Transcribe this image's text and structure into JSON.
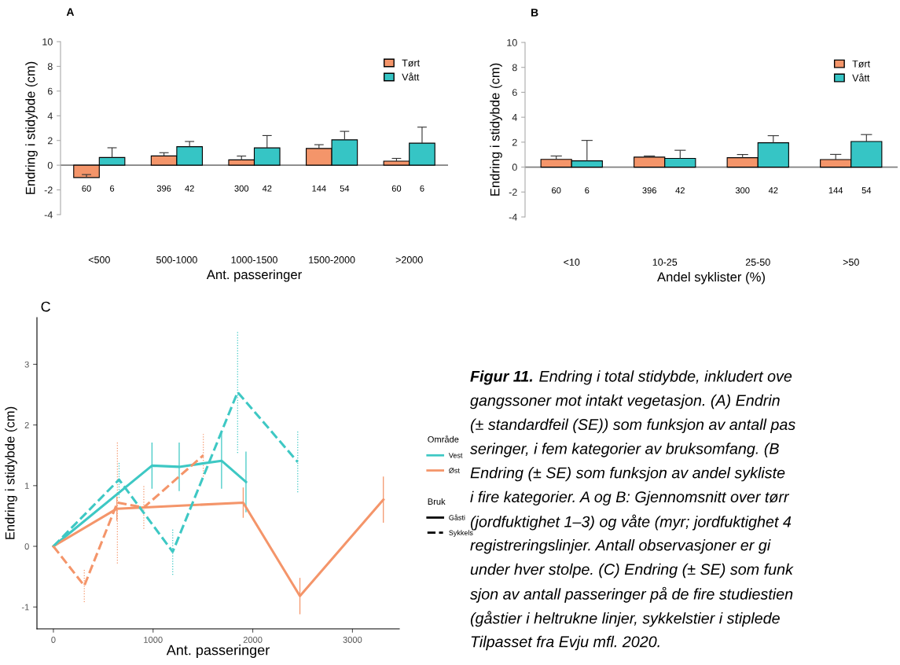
{
  "chart_data": [
    {
      "type": "bar",
      "title": "A",
      "ylabel": "Endring i stidybde (cm)",
      "xlabel": "Ant. passeringer",
      "categories": [
        "<500",
        "500-1000",
        "1000-1500",
        "1500-2000",
        ">2000"
      ],
      "series": [
        {
          "name": "Tørt",
          "color": "#f4956a",
          "values": [
            -1.0,
            0.75,
            0.43,
            1.35,
            0.33
          ],
          "errors": [
            [
              -1.0,
              -0.76
            ],
            [
              0.75,
              1.01
            ],
            [
              0.43,
              0.74
            ],
            [
              1.35,
              1.66
            ],
            [
              0.33,
              0.55
            ]
          ]
        },
        {
          "name": "Vått",
          "color": "#36c5c5",
          "values": [
            0.62,
            1.5,
            1.4,
            2.05,
            1.78
          ],
          "errors": [
            [
              0.62,
              1.41
            ],
            [
              1.5,
              1.92
            ],
            [
              1.4,
              2.4
            ],
            [
              2.05,
              2.74
            ],
            [
              1.78,
              3.08
            ]
          ]
        }
      ],
      "ylim": [
        -4,
        10
      ],
      "yticks": [
        -4,
        -2,
        0,
        2,
        4,
        6,
        8,
        10
      ],
      "legend": "top right",
      "ref_lines": [
        {
          "axis": "y",
          "value": 0,
          "color": "#808080"
        }
      ],
      "annotations": [
        "60",
        "6",
        "396",
        "42",
        "300",
        "42",
        "144",
        "54",
        "60",
        "6"
      ]
    },
    {
      "type": "bar",
      "title": "B",
      "ylabel": "Endring i stidybde (cm)",
      "xlabel": "Andel syklister (%)",
      "categories": [
        "<10",
        "10-25",
        "25-50",
        ">50"
      ],
      "series": [
        {
          "name": "Tørt",
          "color": "#f4956a",
          "values": [
            0.62,
            0.8,
            0.75,
            0.6
          ],
          "errors": [
            [
              0.62,
              0.89
            ],
            [
              0.8,
              0.89
            ],
            [
              0.75,
              1.01
            ],
            [
              0.6,
              1.02
            ]
          ]
        },
        {
          "name": "Vått",
          "color": "#36c5c5",
          "values": [
            0.5,
            0.7,
            1.95,
            2.05
          ],
          "errors": [
            [
              0.5,
              2.14
            ],
            [
              0.7,
              1.35
            ],
            [
              1.95,
              2.52
            ],
            [
              2.05,
              2.61
            ]
          ]
        }
      ],
      "ylim": [
        -4,
        10
      ],
      "yticks": [
        -4,
        -2,
        0,
        2,
        4,
        6,
        8,
        10
      ],
      "legend": "top right",
      "ref_lines": [
        {
          "axis": "y",
          "value": 0,
          "color": "#808080"
        }
      ],
      "annotations": [
        "60",
        "6",
        "396",
        "42",
        "300",
        "42",
        "144",
        "54"
      ]
    },
    {
      "type": "line",
      "title": "C",
      "ylabel": "Endring i stidybde (cm)",
      "xlabel": "Ant. passeringer",
      "legend_title": "Område",
      "series": [
        {
          "name": "Vest",
          "color": "#3ec8c4",
          "line_style": "solid",
          "x": [
            0,
            989,
            1262,
            1687,
            1932
          ],
          "values": [
            0,
            1.33,
            1.31,
            1.41,
            1.06
          ],
          "errors": [
            0,
            0.38,
            0.4,
            0.46,
            0.5
          ]
        },
        {
          "name": "Øst",
          "color": "#f4956a",
          "line_style": "solid",
          "x": [
            0,
            637,
            1904,
            2473,
            3310
          ],
          "values": [
            0,
            0.62,
            0.72,
            -0.82,
            0.77
          ],
          "errors": [
            0,
            0.2,
            0.25,
            0.3,
            0.38
          ]
        },
        {
          "color": "#3ec8c4",
          "line_style": "dashed",
          "x": [
            0,
            659,
            1197,
            1848,
            2451
          ],
          "values": [
            0,
            1.1,
            -0.09,
            2.54,
            1.39
          ],
          "errors": [
            0,
            0.3,
            0.38,
            1.0,
            0.5
          ]
        },
        {
          "color": "#f4956a",
          "line_style": "dashed",
          "x": [
            0,
            310,
            642,
            907,
            1504
          ],
          "values": [
            0,
            -0.65,
            0.72,
            0.64,
            1.5
          ],
          "errors": [
            0,
            0.27,
            1.0,
            0.35,
            0.35
          ]
        }
      ],
      "xlim": [
        -165,
        3470
      ],
      "ylim": [
        -1.36,
        3.77
      ],
      "xticks": [
        0,
        1000,
        2000,
        3000
      ],
      "yticks": [
        -1,
        0,
        1,
        2,
        3
      ],
      "legend": "right",
      "marker": "none",
      "annotations": [
        "Bruk",
        "Gåsti",
        "Sykkels"
      ]
    },
    {
      "type": "other",
      "title": "Figur 11.",
      "annotations": [
        "Endring i total stidybde, inkludert ove",
        "gangssoner mot intakt vegetasjon. (A) Endrin",
        "(± standardfeil (SE)) som funksjon av antall pas",
        "seringer, i fem kategorier av bruksomfang. (B",
        "Endring (± SE) som funksjon av andel sykliste",
        "i fire kategorier. A og B: Gjennomsnitt over tørr",
        "(jordfuktighet 1–3) og våte (myr; jordfuktighet 4",
        "registreringslinjer. Antall observasjoner er gi",
        "under hver stolpe. (C) Endring (± SE) som funk",
        "sjon av antall passeringer på de fire studiestien",
        "(gåstier i heltrukne linjer, sykkelstier i stiplede",
        "Tilpasset fra Evju mfl. 2020."
      ]
    }
  ]
}
